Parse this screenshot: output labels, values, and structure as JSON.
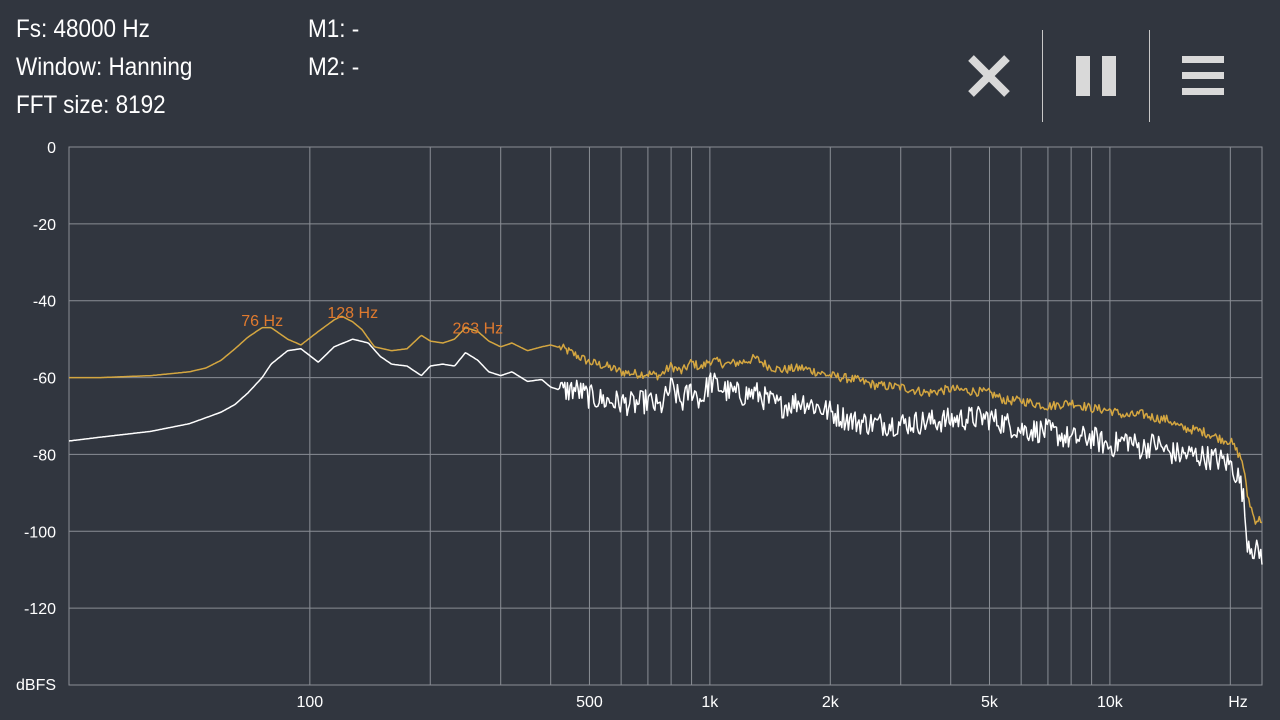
{
  "info": {
    "fs": "Fs: 48000 Hz",
    "window": "Window: Hanning",
    "fft_size": "FFT size: 8192",
    "m1": "M1: -",
    "m2": "M2: -"
  },
  "toolbar": {
    "close_icon": "close-icon",
    "pause_icon": "pause-icon",
    "menu_icon": "menu-icon"
  },
  "colors": {
    "background": "#31363f",
    "grid": "#8a8e95",
    "peak_hold_trace": "#d4a640",
    "live_trace": "#ffffff",
    "peak_label": "#e07a2e"
  },
  "chart_data": {
    "type": "line",
    "title": "",
    "xlabel": "Hz",
    "ylabel": "dBFS",
    "x_scale": "log",
    "xlim": [
      25,
      24000
    ],
    "ylim": [
      -140,
      0
    ],
    "grid": true,
    "x_tick_labels": [
      {
        "value": 100,
        "label": "100"
      },
      {
        "value": 500,
        "label": "500"
      },
      {
        "value": 1000,
        "label": "1k"
      },
      {
        "value": 2000,
        "label": "2k"
      },
      {
        "value": 5000,
        "label": "5k"
      },
      {
        "value": 10000,
        "label": "10k"
      }
    ],
    "x_gridlines": [
      100,
      200,
      300,
      400,
      500,
      600,
      700,
      800,
      900,
      1000,
      2000,
      3000,
      4000,
      5000,
      6000,
      7000,
      8000,
      9000,
      10000,
      20000
    ],
    "y_ticks": [
      0,
      -20,
      -40,
      -60,
      -80,
      -100,
      -120
    ],
    "annotations": [
      {
        "x": 76,
        "y": -46,
        "text": "76 Hz"
      },
      {
        "x": 128,
        "y": -44,
        "text": "128 Hz"
      },
      {
        "x": 263,
        "y": -48,
        "text": "263 Hz"
      }
    ],
    "series": [
      {
        "color": "#d4a640",
        "x": [
          25,
          30,
          40,
          50,
          55,
          60,
          65,
          70,
          76,
          80,
          88,
          95,
          105,
          115,
          120,
          128,
          135,
          145,
          160,
          175,
          190,
          200,
          215,
          230,
          245,
          263,
          280,
          300,
          320,
          350,
          380,
          400,
          430,
          460,
          500,
          550,
          600,
          650,
          700,
          750,
          800,
          850,
          900,
          950,
          1000,
          1100,
          1200,
          1300,
          1400,
          1500,
          1700,
          2000,
          2300,
          2600,
          3000,
          3500,
          4000,
          4500,
          5000,
          5500,
          6000,
          7000,
          8000,
          9000,
          10000,
          11000,
          12000,
          13000,
          14000,
          15000,
          16000,
          17000,
          18000,
          19000,
          20000,
          21000,
          21500,
          22000,
          23000,
          24000
        ],
        "y": [
          -60,
          -60,
          -59.5,
          -58.5,
          -57.5,
          -55.5,
          -52.5,
          -49.5,
          -47,
          -47,
          -50,
          -51.5,
          -48,
          -45,
          -44,
          -45.5,
          -47.5,
          -52,
          -53,
          -52.5,
          -49,
          -50.5,
          -51,
          -50,
          -47,
          -48,
          -50.5,
          -52,
          -51,
          -53,
          -52,
          -51.5,
          -52.5,
          -54,
          -56,
          -57,
          -58.5,
          -59,
          -59,
          -59.5,
          -57,
          -58.5,
          -56,
          -57.5,
          -55.5,
          -56.5,
          -56,
          -55,
          -57,
          -58,
          -57.5,
          -59.5,
          -60.5,
          -62,
          -62.5,
          -64,
          -63,
          -63.5,
          -64,
          -66,
          -66,
          -67.5,
          -66.5,
          -68,
          -68.5,
          -70,
          -69.5,
          -70.5,
          -71,
          -73,
          -73.5,
          -74,
          -75,
          -76,
          -76.5,
          -80,
          -82,
          -90,
          -97,
          -97
        ]
      },
      {
        "color": "#ffffff",
        "x": [
          25,
          30,
          40,
          50,
          60,
          65,
          70,
          76,
          80,
          88,
          95,
          105,
          115,
          128,
          140,
          150,
          160,
          175,
          190,
          200,
          215,
          230,
          245,
          263,
          280,
          300,
          320,
          350,
          380,
          400,
          430,
          460,
          500,
          550,
          600,
          650,
          700,
          750,
          800,
          850,
          900,
          950,
          1000,
          1100,
          1200,
          1300,
          1400,
          1500,
          1700,
          2000,
          2300,
          2600,
          3000,
          3500,
          4000,
          4500,
          5000,
          5500,
          6000,
          7000,
          8000,
          9000,
          10000,
          11000,
          12000,
          13000,
          14000,
          15000,
          16000,
          17000,
          18000,
          19000,
          20000,
          21000,
          21500,
          22000,
          23000,
          24000
        ],
        "y": [
          -76.5,
          -75.5,
          -74,
          -72,
          -69,
          -67,
          -64,
          -60,
          -56.5,
          -53,
          -52.5,
          -56,
          -52,
          -50,
          -51,
          -54.5,
          -56.5,
          -57,
          -59.5,
          -57,
          -56.5,
          -57,
          -53.5,
          -55.5,
          -58.5,
          -59.5,
          -58.5,
          -61,
          -60.5,
          -62.5,
          -63.5,
          -63,
          -65,
          -66,
          -66.5,
          -67,
          -66,
          -68,
          -62.5,
          -66.5,
          -63,
          -66,
          -61,
          -63.5,
          -64.5,
          -64,
          -66,
          -67.5,
          -66,
          -69,
          -71.5,
          -72,
          -72,
          -71.5,
          -71,
          -70.5,
          -70.5,
          -72,
          -73.5,
          -74,
          -76,
          -75.5,
          -78,
          -76,
          -78.5,
          -77,
          -79.5,
          -80,
          -80,
          -80.5,
          -81,
          -81.5,
          -82.5,
          -86,
          -90,
          -102,
          -105,
          -106
        ]
      }
    ]
  }
}
